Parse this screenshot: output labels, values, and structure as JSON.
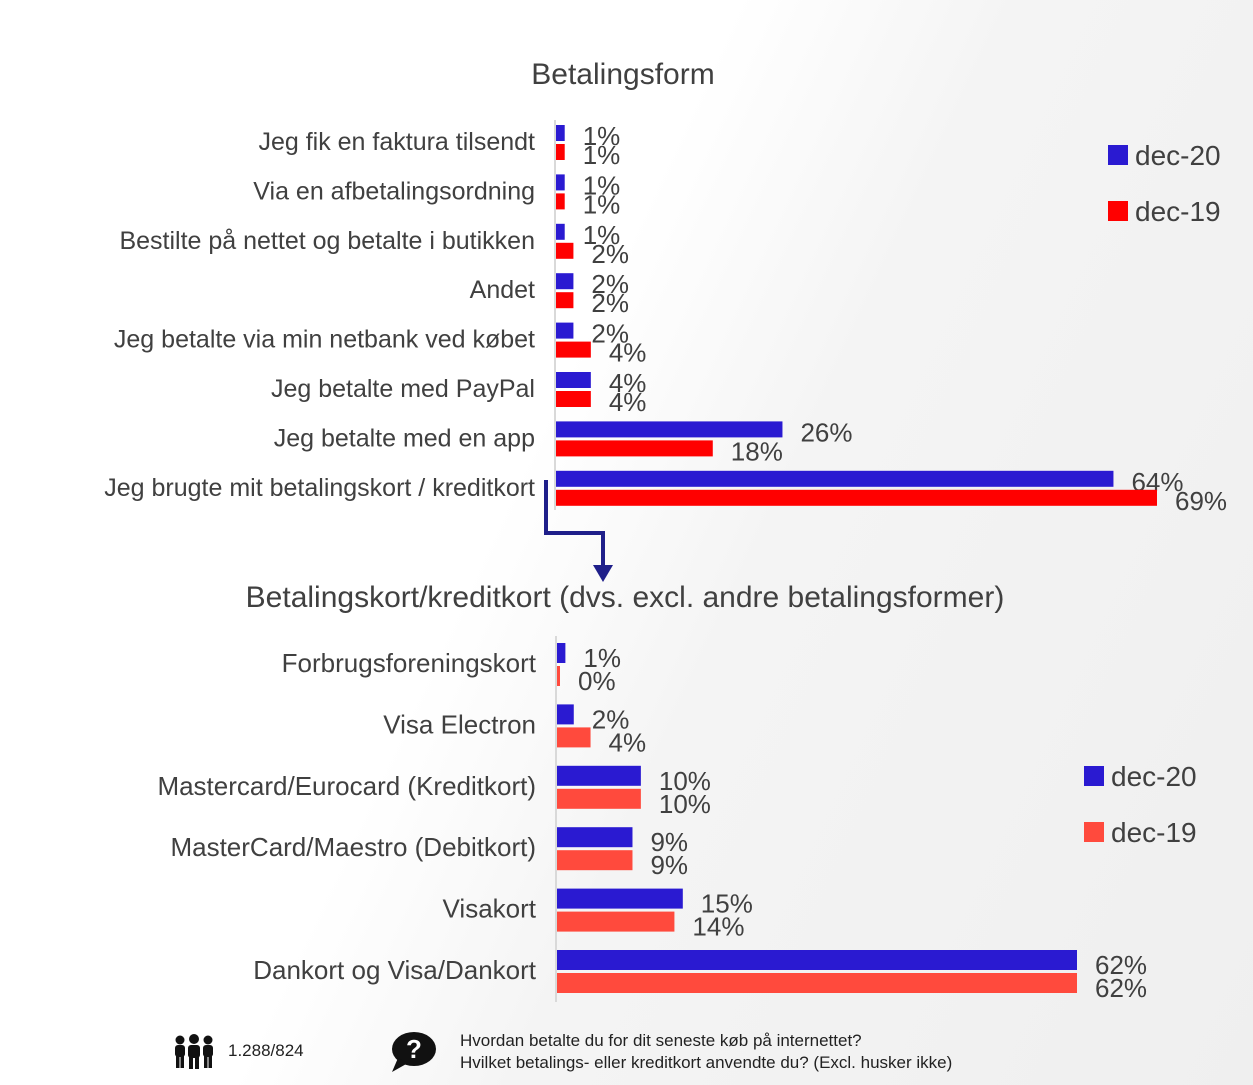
{
  "chart_data": [
    {
      "type": "bar",
      "orientation": "horizontal",
      "title": "Betalingsform",
      "categories": [
        "Jeg fik en faktura tilsendt",
        "Via en afbetalingsordning",
        "Bestilte på nettet og betalte i butikken",
        "Andet",
        "Jeg betalte via min netbank ved købet",
        "Jeg betalte med PayPal",
        "Jeg betalte med en app",
        "Jeg brugte mit betalingskort / kreditkort"
      ],
      "series": [
        {
          "name": "dec-20",
          "color": "#2a1ad1",
          "values": [
            1,
            1,
            1,
            2,
            2,
            4,
            26,
            64
          ],
          "labels": [
            "1%",
            "1%",
            "1%",
            "2%",
            "2%",
            "4%",
            "26%",
            "64%"
          ]
        },
        {
          "name": "dec-19",
          "color": "#ff0000",
          "values": [
            1,
            1,
            2,
            2,
            4,
            4,
            18,
            69
          ],
          "labels": [
            "1%",
            "1%",
            "2%",
            "2%",
            "4%",
            "4%",
            "18%",
            "69%"
          ]
        }
      ],
      "xlim": [
        0,
        70
      ],
      "legend": "top-right"
    },
    {
      "type": "bar",
      "orientation": "horizontal",
      "title": "Betalingskort/kreditkort (dvs. excl. andre betalingsformer)",
      "categories": [
        "Forbrugsforeningskort",
        "Visa Electron",
        "Mastercard/Eurocard (Kreditkort)",
        "MasterCard/Maestro (Debitkort)",
        "Visakort",
        "Dankort og Visa/Dankort"
      ],
      "series": [
        {
          "name": "dec-20",
          "color": "#2a1ad1",
          "values": [
            1,
            2,
            10,
            9,
            15,
            62
          ],
          "labels": [
            "1%",
            "2%",
            "10%",
            "9%",
            "15%",
            "62%"
          ]
        },
        {
          "name": "dec-19",
          "color": "#ff4a3d",
          "values": [
            0,
            4,
            10,
            9,
            14,
            62
          ],
          "labels": [
            "0%",
            "4%",
            "10%",
            "9%",
            "14%",
            "62%"
          ]
        }
      ],
      "xlim": [
        0,
        64
      ],
      "legend": "right"
    }
  ],
  "footer": {
    "sample_size": "1.288/824",
    "people_icon": "people-icon",
    "question_icon": "question-bubble-icon",
    "question_line1": "Hvordan betalte du for dit seneste køb på internettet?",
    "question_line2": "Hvilket betalings- eller kreditkort anvendte du? (Excl. husker ikke)"
  }
}
